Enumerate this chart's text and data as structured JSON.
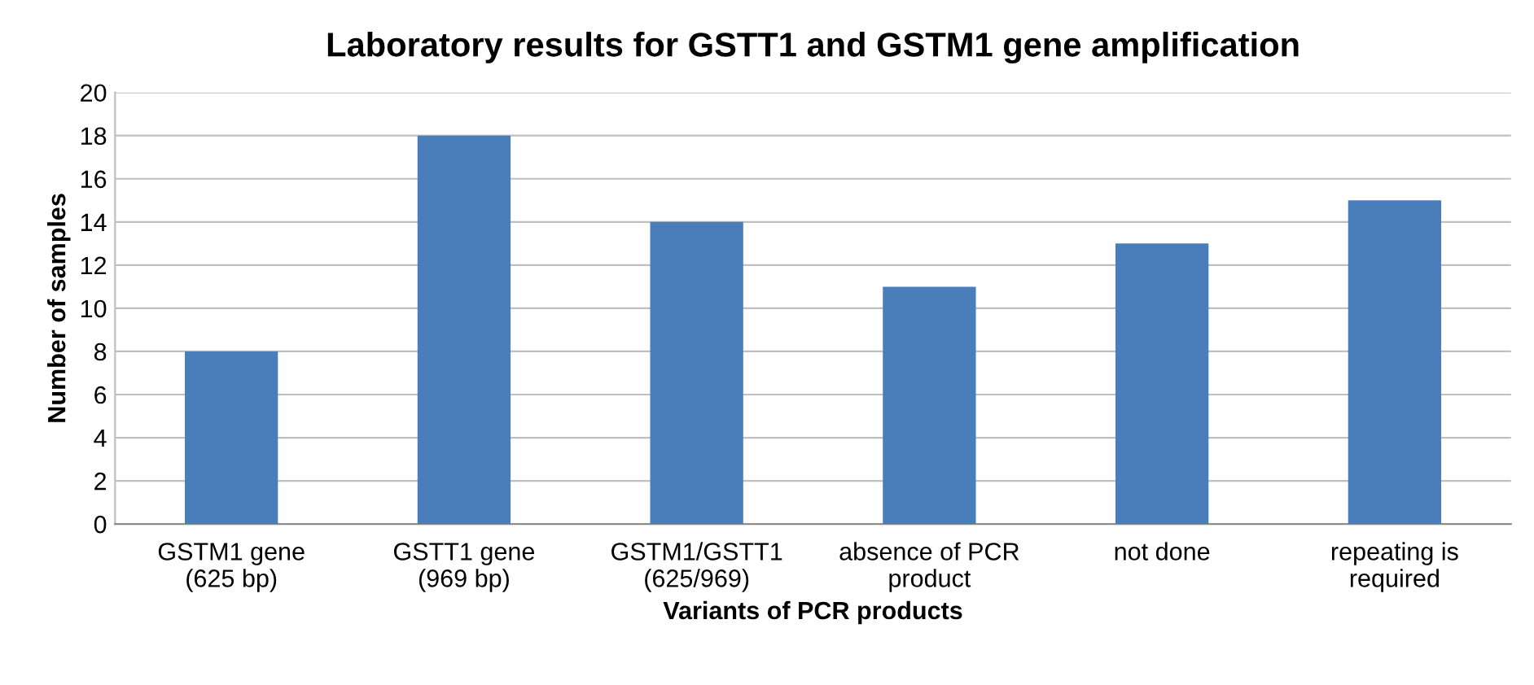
{
  "chart_data": {
    "type": "bar",
    "title": "Laboratory results for GSTT1 and GSTM1 gene amplification",
    "xlabel": "Variants of PCR products",
    "ylabel": "Number of samples",
    "categories": [
      "GSTM1 gene\n(625 bp)",
      "GSTT1 gene\n(969 bp)",
      "GSTM1/GSTT1\n(625/969)",
      "absence of PCR\nproduct",
      "not done",
      "repeating is\nrequired"
    ],
    "values": [
      8,
      18,
      14,
      11,
      13,
      15
    ],
    "color": "#4a7ebb",
    "ylim": [
      0,
      20
    ],
    "yticks": [
      0,
      2,
      4,
      6,
      8,
      10,
      12,
      14,
      16,
      18,
      20
    ],
    "grid": "y"
  }
}
